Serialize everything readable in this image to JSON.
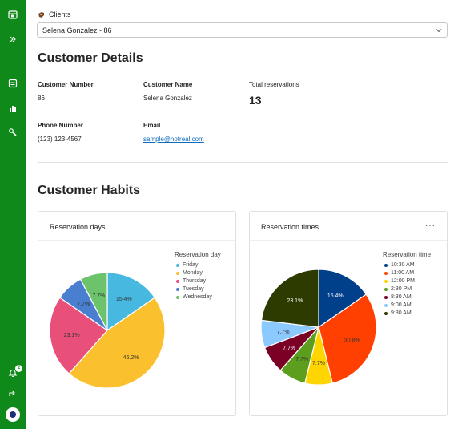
{
  "nav": {
    "items": [
      "calendar-icon",
      "expand-icon",
      "calendar-list-icon",
      "chart-icon",
      "tools-icon"
    ],
    "notifications_count": "2"
  },
  "clients": {
    "label": "Clients",
    "selected": "Selena Gonzalez - 86"
  },
  "details": {
    "heading": "Customer Details",
    "number_label": "Customer Number",
    "number_value": "86",
    "name_label": "Customer Name",
    "name_value": "Selena Gonzalez",
    "reservations_label": "Total reservations",
    "reservations_value": "13",
    "phone_label": "Phone Number",
    "phone_value": "(123) 123-4567",
    "email_label": "Email",
    "email_value": "sample@notreal.com"
  },
  "habits": {
    "heading": "Customer Habits"
  },
  "chart_data": [
    {
      "type": "pie",
      "title": "Reservation days",
      "legend_title": "Reservation day",
      "legend_position": "right",
      "slices": [
        {
          "label": "Friday",
          "value": 15.4,
          "color": "#47b8e0"
        },
        {
          "label": "Monday",
          "value": 46.2,
          "color": "#fbc02d"
        },
        {
          "label": "Thursday",
          "value": 23.1,
          "color": "#e8507a"
        },
        {
          "label": "Tuesday",
          "value": 7.7,
          "color": "#4a7fd0"
        },
        {
          "label": "Wednesday",
          "value": 7.7,
          "color": "#6cc36c"
        }
      ]
    },
    {
      "type": "pie",
      "title": "Reservation times",
      "legend_title": "Reservation time",
      "legend_position": "right",
      "slices": [
        {
          "label": "10:30 AM",
          "value": 15.4,
          "color": "#003f8a"
        },
        {
          "label": "11:00 AM",
          "value": 30.8,
          "color": "#ff4000"
        },
        {
          "label": "12:00 PM",
          "value": 7.7,
          "color": "#ffd500"
        },
        {
          "label": "2:30 PM",
          "value": 7.7,
          "color": "#5c9e1e"
        },
        {
          "label": "8:30 AM",
          "value": 7.7,
          "color": "#7a0026"
        },
        {
          "label": "9:00 AM",
          "value": 7.7,
          "color": "#8cc9ff"
        },
        {
          "label": "9:30 AM",
          "value": 23.1,
          "color": "#2d3b00"
        }
      ]
    }
  ]
}
